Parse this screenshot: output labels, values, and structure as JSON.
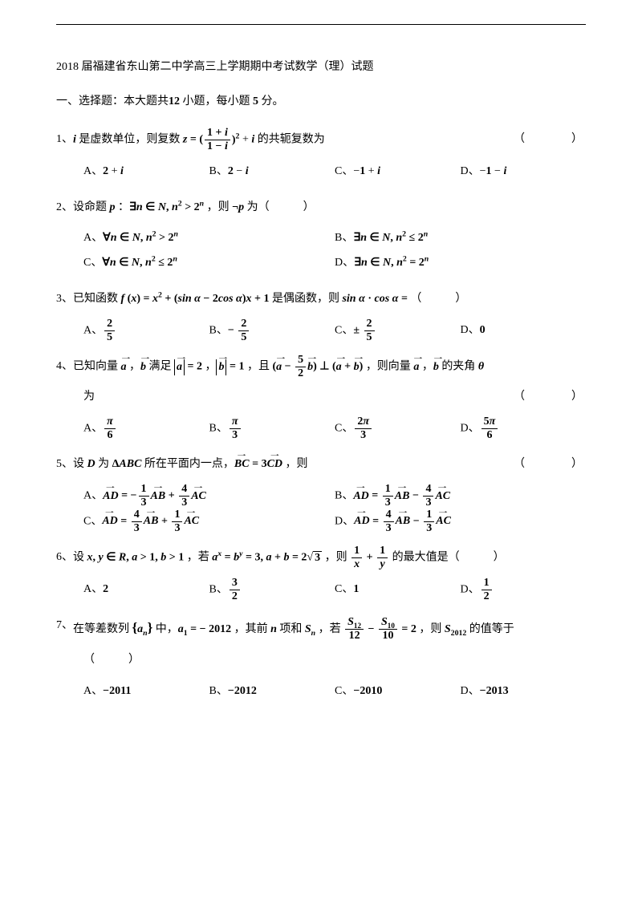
{
  "title": "2018 届福建省东山第二中学高三上学期期中考试数学（理）试题",
  "section1": "一、选择题：本大题共",
  "section1_n": "12",
  "section1_mid": " 小题，每小题 ",
  "section1_pts": "5",
  "section1_end": " 分。",
  "paren_blank": "（　　　）",
  "q1": {
    "num": "1、",
    "pre": " 是虚数单位，则复数 ",
    "post": " 的共轭复数为",
    "optA": "A、",
    "optB": "B、",
    "optC": "C、",
    "optD": "D、"
  },
  "q2": {
    "num": "2、",
    "pre": "设命题 ",
    "mid": " ：",
    "post": " ，则 ",
    "neg": " 为（　　　）"
  },
  "q3": {
    "num": "3、",
    "pre": "已知函数 ",
    "mid": " 是偶函数，则 ",
    "post": "（　　　）"
  },
  "q4": {
    "num": "4、",
    "pre": "已知向量 ",
    "mid1": " ，",
    "mid2": " 满足 ",
    "mid3": " ，",
    "mid4": " ，且 ",
    "post": " ，则向量 ",
    "mid5": " ，",
    "end": " 的夹角 ",
    "line2": "为"
  },
  "q5": {
    "num": "5、",
    "pre": "设 ",
    "mid1": " 为 ",
    "mid2": " 所在平面内一点，",
    "post": " ，则"
  },
  "q6": {
    "num": "6、",
    "pre": "设 ",
    "mid1": " ，若 ",
    "mid2": " ，则 ",
    "post": " 的最大值是（　　　）"
  },
  "q7": {
    "num": "7、",
    "pre": "在等差数列 ",
    "mid1": " 中，",
    "mid2": " ，其前 ",
    "mid3": " 项和 ",
    "mid4": " ，若 ",
    "post": " ，则 ",
    "end": " 的值等于",
    "line2": "（　　　）"
  },
  "opt_labels": {
    "A": "A、",
    "B": "B、",
    "C": "C、",
    "D": "D、"
  },
  "q7opts": {
    "A": "−2011",
    "B": "−2012",
    "C": "−2010",
    "D": "−2013"
  },
  "q6opts": {
    "A": "2",
    "C": "1"
  },
  "q3opts": {
    "D": "0"
  }
}
